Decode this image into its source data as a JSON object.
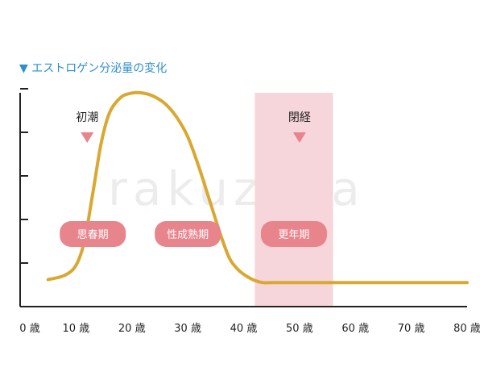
{
  "chart_data": {
    "type": "line",
    "title": "▼ エストロゲン分泌量の変化",
    "xlabel": "",
    "ylabel": "",
    "xlim": [
      0,
      80
    ],
    "ylim": [
      0,
      5
    ],
    "x_ticks": [
      0,
      10,
      20,
      30,
      40,
      50,
      60,
      70,
      80
    ],
    "x_tick_labels": [
      "0 歳",
      "10 歳",
      "20 歳",
      "30 歳",
      "40 歳",
      "50 歳",
      "60 歳",
      "70 歳",
      "80 歳"
    ],
    "y_ticks": [
      1,
      2,
      3,
      4,
      5
    ],
    "y_tick_labels": [],
    "grid": false,
    "legend": "none",
    "series": [
      {
        "color": "#d9a832",
        "x": [
          5,
          8,
          10,
          11.5,
          13,
          14.5,
          16,
          18,
          20,
          22,
          24,
          26,
          28,
          30,
          32,
          34,
          36,
          37.5,
          39,
          40.5,
          42,
          43.5,
          45,
          47,
          50,
          55,
          60,
          70,
          80
        ],
        "y": [
          0.62,
          0.72,
          0.95,
          1.5,
          2.6,
          3.75,
          4.45,
          4.8,
          4.9,
          4.9,
          4.82,
          4.65,
          4.35,
          3.9,
          3.2,
          2.4,
          1.6,
          1.1,
          0.85,
          0.7,
          0.6,
          0.55,
          0.55,
          0.55,
          0.55,
          0.55,
          0.55,
          0.55,
          0.55
        ]
      }
    ],
    "shaded_band": {
      "x_range": [
        42,
        56
      ],
      "color": "#f6d6da"
    },
    "markers": [
      {
        "label": "初潮",
        "x": 12,
        "color": "#e8848c"
      },
      {
        "label": "閉経",
        "x": 50,
        "color": "#e8848c"
      }
    ],
    "stages": [
      {
        "label": "思春期",
        "x": 13,
        "color": "#e8848c"
      },
      {
        "label": "性成熟期",
        "x": 30,
        "color": "#e8848c"
      },
      {
        "label": "更年期",
        "x": 49,
        "color": "#e8848c"
      }
    ]
  },
  "watermark": "rakuzaya"
}
